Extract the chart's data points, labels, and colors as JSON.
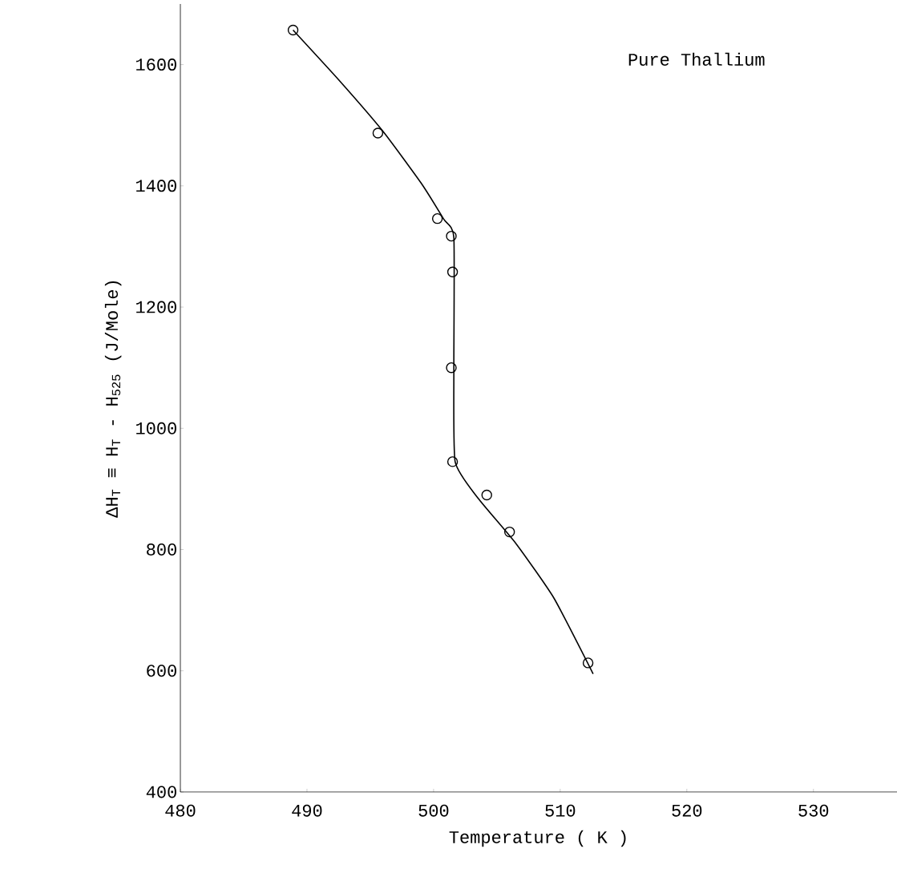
{
  "chart_data": {
    "type": "scatter",
    "xlabel": "Temperature ( K )",
    "ylabel": "ΔH$_{T}$ ≡ H$_{T}$ - H$_{525}$ (J/Mole)",
    "annotations": [
      "Pure Thallium"
    ],
    "xlim": [
      480,
      536.6
    ],
    "ylim": [
      400,
      1700
    ],
    "xticks": [
      480,
      490,
      500,
      510,
      520,
      530
    ],
    "yticks": [
      400,
      600,
      800,
      1000,
      1200,
      1400,
      1600
    ],
    "series": [
      {
        "marker": "circle",
        "color": "#000000",
        "x": [
          488.9,
          495.6,
          500.3,
          501.4,
          501.5,
          501.4,
          501.5,
          504.2,
          506.0,
          512.2
        ],
        "values": [
          1657,
          1487,
          1346,
          1317,
          1258,
          1100,
          945,
          890,
          829,
          613
        ]
      },
      {
        "type": "line",
        "marker": "none",
        "line_style": "solid",
        "color": "#000000",
        "x": [
          488.9,
          492.5,
          496.0,
          499.0,
          500.8,
          501.6,
          501.6,
          501.7,
          503.5,
          506.5,
          509.5,
          512.6
        ],
        "values": [
          1657,
          1575,
          1490,
          1405,
          1345,
          1315,
          1100,
          945,
          885,
          810,
          720,
          595
        ]
      }
    ]
  }
}
